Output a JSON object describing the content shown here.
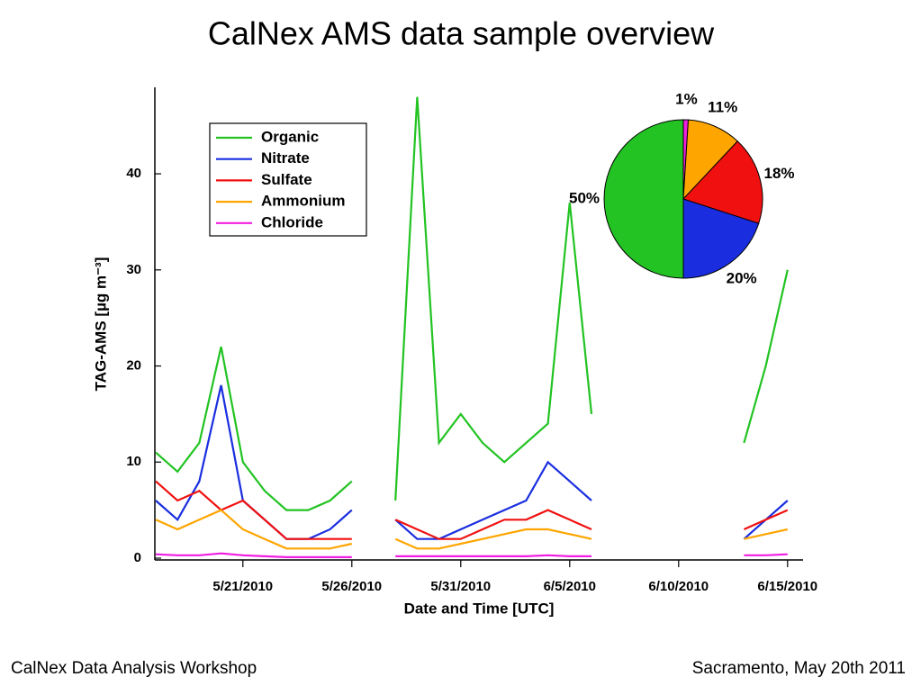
{
  "title": "CalNex AMS data sample overview",
  "footer": {
    "left": "CalNex Data Analysis Workshop",
    "right": "Sacramento, May 20th 2011"
  },
  "chart_data": [
    {
      "type": "line",
      "ylabel": "TAG-AMS [µg m⁻³]",
      "xlabel": "Date and Time [UTC]",
      "x": [
        "5/17/2010",
        "5/18/2010",
        "5/19/2010",
        "5/20/2010",
        "5/21/2010",
        "5/22/2010",
        "5/23/2010",
        "5/24/2010",
        "5/25/2010",
        "5/26/2010",
        "5/27/2010",
        "5/28/2010",
        "5/29/2010",
        "5/30/2010",
        "5/31/2010",
        "6/1/2010",
        "6/2/2010",
        "6/3/2010",
        "6/4/2010",
        "6/5/2010",
        "6/6/2010",
        "6/7/2010",
        "6/8/2010",
        "6/9/2010",
        "6/10/2010",
        "6/11/2010",
        "6/12/2010",
        "6/13/2010",
        "6/14/2010",
        "6/15/2010"
      ],
      "xlim": [
        "5/17/2010",
        "6/16/2010"
      ],
      "xticks": [
        "5/21/2010",
        "5/26/2010",
        "5/31/2010",
        "6/5/2010",
        "6/10/2010",
        "6/15/2010"
      ],
      "ylim": [
        0,
        49
      ],
      "yticks": [
        0,
        10,
        20,
        30,
        40
      ],
      "legend": "upper-left",
      "series": [
        {
          "name": "Organic",
          "color": "#22c322",
          "values": [
            11,
            9,
            12,
            22,
            10,
            7,
            5,
            5,
            6,
            8,
            null,
            6,
            48,
            12,
            15,
            12,
            10,
            12,
            14,
            37,
            15,
            null,
            null,
            null,
            null,
            null,
            null,
            12,
            20,
            30
          ]
        },
        {
          "name": "Nitrate",
          "color": "#1a2ee0",
          "values": [
            6,
            4,
            8,
            18,
            6,
            4,
            2,
            2,
            3,
            5,
            null,
            4,
            2,
            2,
            3,
            4,
            5,
            6,
            10,
            8,
            6,
            null,
            null,
            null,
            null,
            null,
            null,
            2,
            4,
            6
          ]
        },
        {
          "name": "Sulfate",
          "color": "#f01010",
          "values": [
            8,
            6,
            7,
            5,
            6,
            4,
            2,
            2,
            2,
            2,
            null,
            4,
            3,
            2,
            2,
            3,
            4,
            4,
            5,
            4,
            3,
            null,
            null,
            null,
            null,
            null,
            null,
            3,
            4,
            5
          ]
        },
        {
          "name": "Ammonium",
          "color": "#ffa500",
          "values": [
            4,
            3,
            4,
            5,
            3,
            2,
            1,
            1,
            1,
            1.5,
            null,
            2,
            1,
            1,
            1.5,
            2,
            2.5,
            3,
            3,
            2.5,
            2,
            null,
            null,
            null,
            null,
            null,
            null,
            2,
            2.5,
            3
          ]
        },
        {
          "name": "Chloride",
          "color": "#f01ee0",
          "values": [
            0.4,
            0.3,
            0.3,
            0.5,
            0.3,
            0.2,
            0.1,
            0.1,
            0.1,
            0.1,
            null,
            0.2,
            0.2,
            0.2,
            0.2,
            0.2,
            0.2,
            0.2,
            0.3,
            0.2,
            0.2,
            null,
            null,
            null,
            null,
            null,
            null,
            0.3,
            0.3,
            0.4
          ]
        }
      ]
    },
    {
      "type": "pie",
      "values": [
        1,
        11,
        18,
        20,
        50
      ],
      "value_labels": [
        "1%",
        "11%",
        "18%",
        "20%",
        "50%"
      ],
      "colors": [
        "#f01ee0",
        "#ffa500",
        "#f01010",
        "#1a2ee0",
        "#22c322"
      ]
    }
  ]
}
